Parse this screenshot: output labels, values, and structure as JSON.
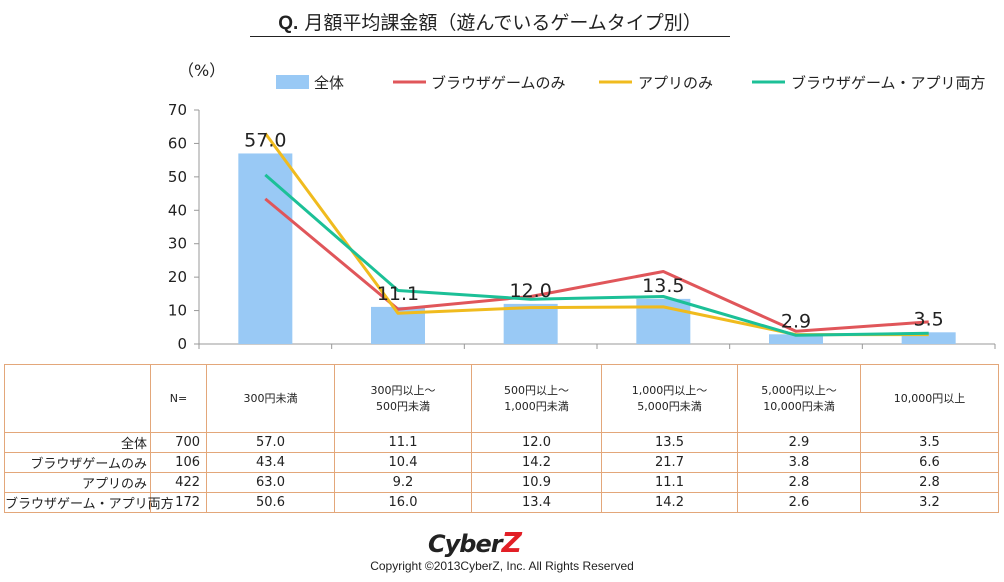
{
  "title": {
    "prefix": "Q.",
    "text": "月額平均課金額（遊んでいるゲームタイプ別）"
  },
  "chart_data": {
    "type": "bar",
    "title": "Q. 月額平均課金額（遊んでいるゲームタイプ別）",
    "ylabel": "（%）",
    "ylim": [
      0,
      70
    ],
    "yticks": [
      "0",
      "10",
      "20",
      "30",
      "40",
      "50",
      "60",
      "70"
    ],
    "categories": [
      "300円未満",
      "300円以上～500円未満",
      "500円以上～1,000円未満",
      "1,000円以上～5,000円未満",
      "5,000円以上～10,000円未満",
      "10,000円以上"
    ],
    "series": [
      {
        "name": "全体",
        "kind": "bar",
        "color": "#99c9f5",
        "values": [
          57.0,
          11.1,
          12.0,
          13.5,
          2.9,
          3.5
        ],
        "labels": [
          "57.0",
          "11.1",
          "12.0",
          "13.5",
          "2.9",
          "3.5"
        ]
      },
      {
        "name": "ブラウザゲームのみ",
        "kind": "line",
        "color": "#e0565a",
        "values": [
          43.4,
          10.4,
          14.2,
          21.7,
          3.8,
          6.6
        ]
      },
      {
        "name": "アプリのみ",
        "kind": "line",
        "color": "#f0bb1e",
        "values": [
          63.0,
          9.2,
          10.9,
          11.1,
          2.8,
          2.8
        ]
      },
      {
        "name": "ブラウザゲーム・アプリ両方",
        "kind": "line",
        "color": "#1cc097",
        "values": [
          50.6,
          16.0,
          13.4,
          14.2,
          2.6,
          3.2
        ]
      }
    ],
    "legend": "top",
    "grid": false
  },
  "table": {
    "n_header": "N=",
    "col_headers": [
      [
        "300円未満"
      ],
      [
        "300円以上～",
        "500円未満"
      ],
      [
        "500円以上～",
        "1,000円未満"
      ],
      [
        "1,000円以上～",
        "5,000円未満"
      ],
      [
        "5,000円以上～",
        "10,000円未満"
      ],
      [
        "10,000円以上"
      ]
    ],
    "rows": [
      {
        "label": "全体",
        "n": "700",
        "values": [
          "57.0",
          "11.1",
          "12.0",
          "13.5",
          "2.9",
          "3.5"
        ]
      },
      {
        "label": "ブラウザゲームのみ",
        "n": "106",
        "values": [
          "43.4",
          "10.4",
          "14.2",
          "21.7",
          "3.8",
          "6.6"
        ]
      },
      {
        "label": "アプリのみ",
        "n": "422",
        "values": [
          "63.0",
          "9.2",
          "10.9",
          "11.1",
          "2.8",
          "2.8"
        ]
      },
      {
        "label": "ブラウザゲーム・アプリ両方",
        "n": "172",
        "values": [
          "50.6",
          "16.0",
          "13.4",
          "14.2",
          "2.6",
          "3.2"
        ]
      }
    ]
  },
  "footer": {
    "logo_main": "Cyber",
    "logo_accent": "Z",
    "copyright": "Copyright ©2013CyberZ, Inc.  All Rights Reserved"
  }
}
